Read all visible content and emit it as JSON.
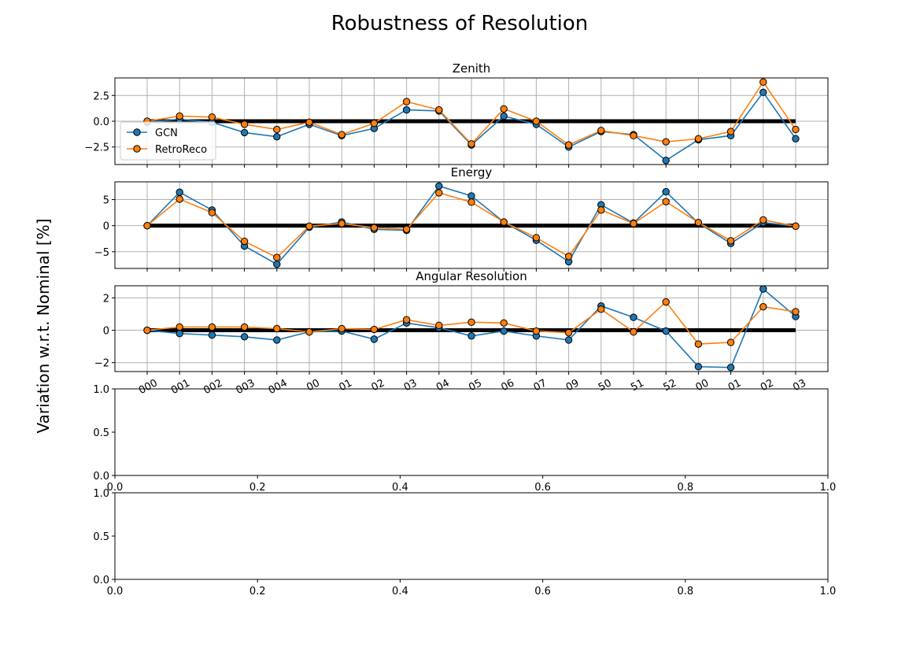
{
  "suptitle": "Robustness of Resolution",
  "ylabel": "Variation w.r.t. Nominal [%]",
  "colors": {
    "GCN": "#1f77b4",
    "RetroReco": "#ff7f0e",
    "nominal": "#000000",
    "grid": "#b0b0b0"
  },
  "legend": {
    "location": "lower-left of Zenith panel",
    "entries": [
      "GCN",
      "RetroReco"
    ]
  },
  "chart_data": [
    {
      "type": "line",
      "title": "Zenith",
      "x_tick_labels_visible": false,
      "ylim": [
        -4.2,
        4.2
      ],
      "yticks": [
        -2.5,
        0.0,
        2.5
      ],
      "ytick_labels": [
        "−2.5",
        "0.0",
        "2.5"
      ],
      "grid": true,
      "legend": true,
      "nominal_line": 0,
      "series": [
        {
          "name": "GCN",
          "values": [
            -0.1,
            0.2,
            -0.1,
            -1.1,
            -1.5,
            -0.3,
            -1.4,
            -0.7,
            1.1,
            1.0,
            -2.3,
            0.5,
            -0.3,
            -2.5,
            -1.0,
            -1.3,
            -3.8,
            -1.8,
            -1.4,
            2.8,
            -1.7
          ]
        },
        {
          "name": "RetroReco",
          "values": [
            0.0,
            0.5,
            0.4,
            -0.3,
            -0.8,
            -0.1,
            -1.3,
            -0.2,
            1.9,
            1.1,
            -2.2,
            1.2,
            0.0,
            -2.3,
            -0.9,
            -1.4,
            -2.0,
            -1.7,
            -1.0,
            3.8,
            -0.8
          ]
        }
      ]
    },
    {
      "type": "line",
      "title": "Energy",
      "x_tick_labels_visible": false,
      "ylim": [
        -8.2,
        8.4
      ],
      "yticks": [
        -5,
        0,
        5
      ],
      "ytick_labels": [
        "−5",
        "0",
        "5"
      ],
      "grid": true,
      "legend": false,
      "nominal_line": 0,
      "series": [
        {
          "name": "GCN",
          "values": [
            0.0,
            6.4,
            3.0,
            -3.9,
            -7.4,
            -0.3,
            0.7,
            -0.7,
            -0.9,
            7.6,
            5.7,
            0.7,
            -2.8,
            -6.9,
            4.0,
            0.5,
            6.5,
            0.5,
            -3.4,
            0.6,
            -0.1
          ]
        },
        {
          "name": "RetroReco",
          "values": [
            0.0,
            5.1,
            2.5,
            -3.0,
            -6.1,
            -0.1,
            0.4,
            -0.4,
            -0.7,
            6.3,
            4.5,
            0.7,
            -2.3,
            -5.9,
            3.0,
            0.4,
            4.6,
            0.6,
            -2.9,
            1.1,
            -0.1
          ]
        }
      ]
    },
    {
      "type": "line",
      "title": "Angular Resolution",
      "x_tick_labels_visible": true,
      "x_tick_labels_note": "21 rotated labels, overlapped by next panel; legible fragments only",
      "x_tick_labels": [
        "000",
        "001",
        "002",
        "003",
        "004",
        "00",
        "01",
        "02",
        "03",
        "04",
        "05",
        "06",
        "07",
        "09",
        "50",
        "51",
        "52",
        "00",
        "01",
        "02",
        "03"
      ],
      "ylim": [
        -2.55,
        2.75
      ],
      "yticks": [
        -2,
        0,
        2
      ],
      "ytick_labels": [
        "−2",
        "0",
        "2"
      ],
      "grid": true,
      "legend": false,
      "nominal_line": 0,
      "series": [
        {
          "name": "GCN",
          "values": [
            0.0,
            -0.2,
            -0.3,
            -0.4,
            -0.6,
            -0.1,
            -0.05,
            -0.55,
            0.45,
            0.15,
            -0.35,
            -0.05,
            -0.35,
            -0.6,
            1.5,
            0.8,
            -0.05,
            -2.25,
            -2.3,
            2.55,
            0.85
          ]
        },
        {
          "name": "RetroReco",
          "values": [
            0.0,
            0.2,
            0.2,
            0.2,
            0.1,
            -0.1,
            0.1,
            0.05,
            0.65,
            0.3,
            0.5,
            0.45,
            -0.05,
            -0.15,
            1.3,
            -0.1,
            1.75,
            -0.85,
            -0.75,
            1.45,
            1.15
          ]
        }
      ]
    },
    {
      "type": "line",
      "title": "",
      "empty": true,
      "xlim": [
        0.0,
        1.0
      ],
      "ylim": [
        0.0,
        1.0
      ],
      "xticks": [
        0.0,
        0.2,
        0.4,
        0.6,
        0.8,
        1.0
      ],
      "xtick_labels": [
        "0.0",
        "0.2",
        "0.4",
        "0.6",
        "0.8",
        "1.0"
      ],
      "yticks": [
        0.0,
        0.5,
        1.0
      ],
      "ytick_labels": [
        "0.0",
        "0.5",
        "1.0"
      ],
      "grid": false,
      "series": []
    },
    {
      "type": "line",
      "title": "",
      "empty": true,
      "xlim": [
        0.0,
        1.0
      ],
      "ylim": [
        0.0,
        1.0
      ],
      "xticks": [
        0.0,
        0.2,
        0.4,
        0.6,
        0.8,
        1.0
      ],
      "xtick_labels": [
        "0.0",
        "0.2",
        "0.4",
        "0.6",
        "0.8",
        "1.0"
      ],
      "yticks": [
        0.0,
        0.5,
        1.0
      ],
      "ytick_labels": [
        "0.0",
        "0.5",
        "1.0"
      ],
      "grid": false,
      "series": []
    }
  ]
}
